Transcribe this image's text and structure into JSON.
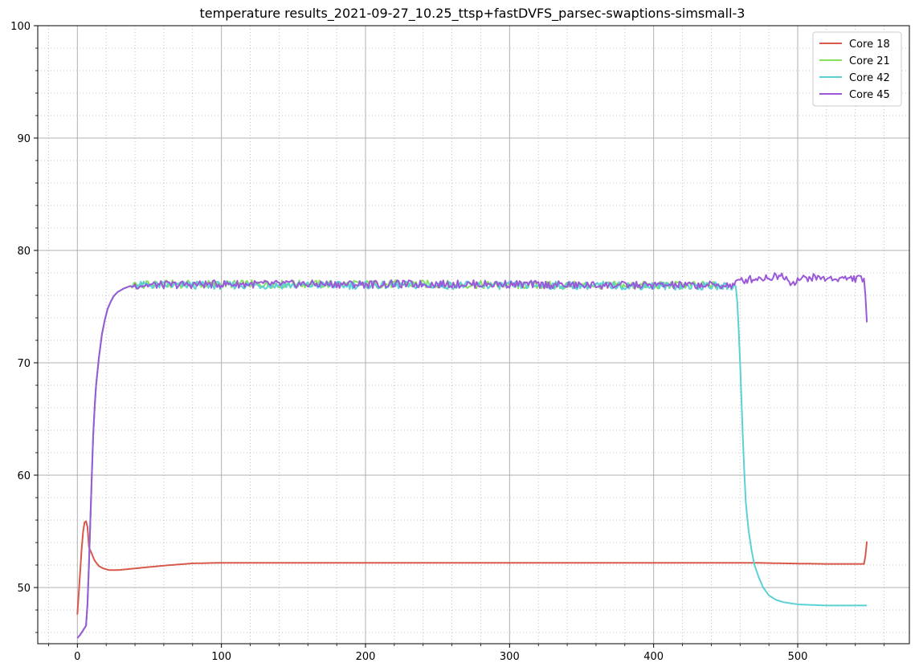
{
  "chart_data": {
    "type": "line",
    "title": "temperature results_2021-09-27_10.25_ttsp+fastDVFS_parsec-swaptions-simsmall-3",
    "xlabel": "",
    "ylabel": "",
    "xlim": [
      -27.5,
      577.5
    ],
    "ylim": [
      45,
      100
    ],
    "x_ticks": [
      0,
      100,
      200,
      300,
      400,
      500
    ],
    "y_ticks": [
      50,
      60,
      70,
      80,
      90,
      100
    ],
    "x_minor_step": 20,
    "y_minor_step": 2,
    "grid": true,
    "legend_position": "top-right",
    "series": [
      {
        "name": "Core 18",
        "color": "#d9584c",
        "points": [
          [
            0,
            47.6
          ],
          [
            2,
            51.5
          ],
          [
            3,
            53.5
          ],
          [
            4,
            55.0
          ],
          [
            5,
            55.8
          ],
          [
            6,
            55.9
          ],
          [
            7,
            55.4
          ],
          [
            8,
            53.6
          ],
          [
            10,
            53.0
          ],
          [
            12,
            52.4
          ],
          [
            15,
            51.9
          ],
          [
            18,
            51.7
          ],
          [
            22,
            51.55
          ],
          [
            28,
            51.55
          ],
          [
            40,
            51.7
          ],
          [
            60,
            51.95
          ],
          [
            80,
            52.15
          ],
          [
            100,
            52.2
          ],
          [
            200,
            52.2
          ],
          [
            300,
            52.2
          ],
          [
            400,
            52.2
          ],
          [
            470,
            52.2
          ],
          [
            490,
            52.15
          ],
          [
            520,
            52.1
          ],
          [
            546,
            52.1
          ],
          [
            547,
            52.8
          ],
          [
            548,
            54.1
          ]
        ]
      },
      {
        "name": "Core 21",
        "color": "#87e05e",
        "points": [
          [
            0,
            45.5
          ],
          [
            2,
            45.8
          ],
          [
            4,
            46.2
          ],
          [
            6,
            46.6
          ],
          [
            7,
            48.5
          ],
          [
            8,
            52.0
          ],
          [
            9,
            56.0
          ],
          [
            10,
            60.0
          ],
          [
            11,
            63.5
          ],
          [
            12,
            66.0
          ],
          [
            13,
            68.0
          ],
          [
            15,
            70.5
          ],
          [
            17,
            72.5
          ],
          [
            19,
            73.8
          ],
          [
            21,
            74.8
          ],
          [
            23,
            75.4
          ],
          [
            25,
            75.9
          ],
          [
            28,
            76.3
          ],
          [
            32,
            76.6
          ],
          [
            36,
            76.8
          ],
          [
            40,
            76.9
          ],
          [
            60,
            77.0
          ],
          [
            100,
            77.0
          ],
          [
            150,
            77.0
          ],
          [
            200,
            77.0
          ],
          [
            250,
            77.0
          ],
          [
            300,
            76.9
          ],
          [
            350,
            76.9
          ],
          [
            400,
            76.9
          ],
          [
            445,
            76.9
          ]
        ]
      },
      {
        "name": "Core 42",
        "color": "#5bd1d6",
        "points": [
          [
            0,
            45.5
          ],
          [
            2,
            45.8
          ],
          [
            4,
            46.2
          ],
          [
            6,
            46.6
          ],
          [
            7,
            48.5
          ],
          [
            8,
            52.0
          ],
          [
            9,
            56.0
          ],
          [
            10,
            60.0
          ],
          [
            11,
            63.5
          ],
          [
            12,
            66.0
          ],
          [
            13,
            68.0
          ],
          [
            15,
            70.5
          ],
          [
            17,
            72.5
          ],
          [
            19,
            73.8
          ],
          [
            21,
            74.8
          ],
          [
            23,
            75.4
          ],
          [
            25,
            75.9
          ],
          [
            28,
            76.3
          ],
          [
            32,
            76.6
          ],
          [
            36,
            76.8
          ],
          [
            40,
            76.9
          ],
          [
            100,
            76.9
          ],
          [
            200,
            76.9
          ],
          [
            300,
            76.9
          ],
          [
            400,
            76.85
          ],
          [
            457,
            76.8
          ],
          [
            458,
            75.5
          ],
          [
            459,
            73.0
          ],
          [
            460,
            70.0
          ],
          [
            461,
            66.5
          ],
          [
            462,
            63.0
          ],
          [
            463,
            60.0
          ],
          [
            464,
            57.5
          ],
          [
            466,
            55.0
          ],
          [
            468,
            53.3
          ],
          [
            470,
            52.0
          ],
          [
            473,
            50.9
          ],
          [
            476,
            50.0
          ],
          [
            480,
            49.3
          ],
          [
            485,
            48.9
          ],
          [
            490,
            48.7
          ],
          [
            500,
            48.5
          ],
          [
            510,
            48.45
          ],
          [
            520,
            48.4
          ],
          [
            548,
            48.4
          ]
        ]
      },
      {
        "name": "Core 45",
        "color": "#9b59d9",
        "points": [
          [
            0,
            45.5
          ],
          [
            2,
            45.8
          ],
          [
            4,
            46.2
          ],
          [
            6,
            46.6
          ],
          [
            7,
            48.5
          ],
          [
            8,
            52.0
          ],
          [
            9,
            56.0
          ],
          [
            10,
            60.0
          ],
          [
            11,
            63.5
          ],
          [
            12,
            66.0
          ],
          [
            13,
            68.0
          ],
          [
            15,
            70.5
          ],
          [
            17,
            72.5
          ],
          [
            19,
            73.8
          ],
          [
            21,
            74.8
          ],
          [
            23,
            75.4
          ],
          [
            25,
            75.9
          ],
          [
            28,
            76.3
          ],
          [
            32,
            76.6
          ],
          [
            36,
            76.8
          ],
          [
            40,
            76.9
          ],
          [
            100,
            77.0
          ],
          [
            150,
            77.0
          ],
          [
            200,
            77.0
          ],
          [
            250,
            77.0
          ],
          [
            300,
            77.0
          ],
          [
            350,
            76.9
          ],
          [
            400,
            76.9
          ],
          [
            455,
            76.9
          ],
          [
            460,
            77.3
          ],
          [
            470,
            77.5
          ],
          [
            480,
            77.6
          ],
          [
            490,
            77.8
          ],
          [
            496,
            77.1
          ],
          [
            500,
            77.4
          ],
          [
            510,
            77.6
          ],
          [
            520,
            77.5
          ],
          [
            530,
            77.5
          ],
          [
            546,
            77.5
          ],
          [
            547,
            76.0
          ],
          [
            548,
            73.6
          ]
        ]
      }
    ]
  }
}
